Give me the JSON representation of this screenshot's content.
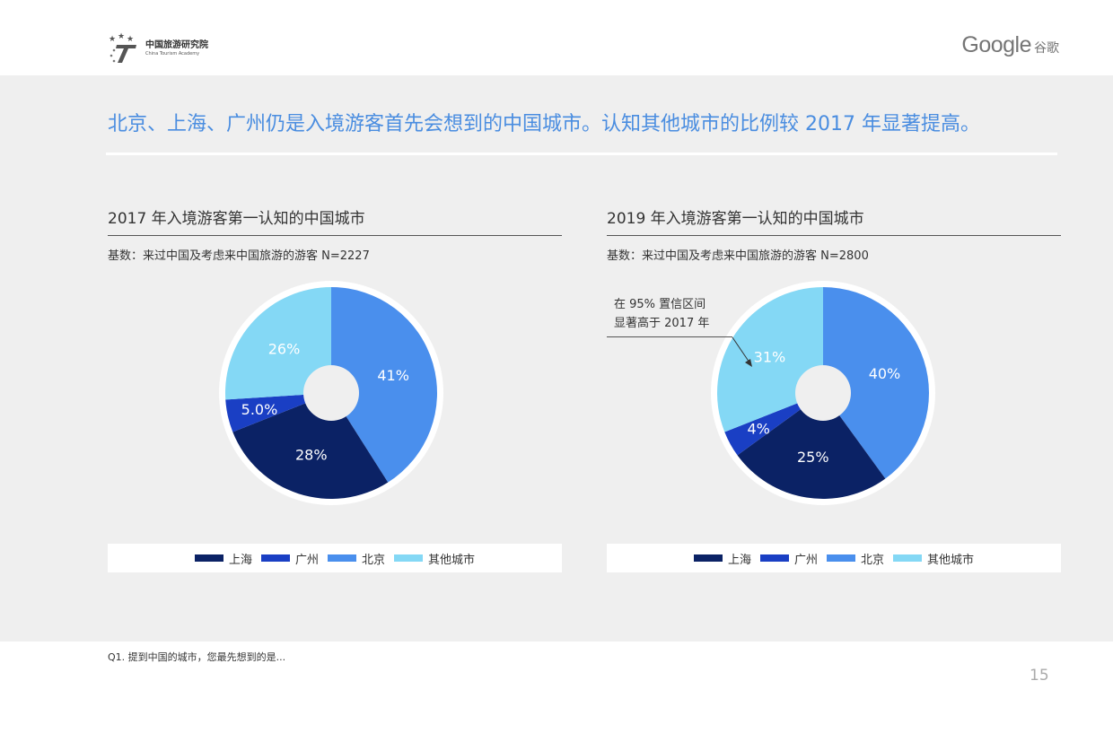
{
  "header": {
    "org_name_cn": "中国旅游研究院",
    "org_name_en": "China Tourism Academy",
    "brand": "Google",
    "brand_cn": "谷歌"
  },
  "headline": "北京、上海、广州仍是入境游客首先会想到的中国城市。认知其他城市的比例较 2017 年显著提高。",
  "legend": [
    "上海",
    "广州",
    "北京",
    "其他城市"
  ],
  "colors": {
    "上海": "#0b2265",
    "广州": "#1a3fc4",
    "北京": "#4a8fed",
    "其他城市": "#84d8f5"
  },
  "panels": [
    {
      "title": "2017 年入境游客第一认知的中国城市",
      "base": "基数：来过中国及考虑来中国旅游的游客 N=2227"
    },
    {
      "title": "2019 年入境游客第一认知的中国城市",
      "base": "基数：来过中国及考虑来中国旅游的游客 N=2800",
      "annotation_line1": "在 95% 置信区间",
      "annotation_line2": "显著高于 2017 年"
    }
  ],
  "chart_data": [
    {
      "type": "pie",
      "title": "2017 年入境游客第一认知的中国城市",
      "categories": [
        "北京",
        "上海",
        "广州",
        "其他城市"
      ],
      "values": [
        41,
        28,
        5.0,
        26
      ],
      "labels": [
        "41%",
        "28%",
        "5.0%",
        "26%"
      ],
      "legend": "bottom"
    },
    {
      "type": "pie",
      "title": "2019 年入境游客第一认知的中国城市",
      "categories": [
        "北京",
        "上海",
        "广州",
        "其他城市"
      ],
      "values": [
        40,
        25,
        4,
        31
      ],
      "labels": [
        "40%",
        "25%",
        "4%",
        "31%"
      ],
      "legend": "bottom"
    }
  ],
  "footer": {
    "question": "Q1. 提到中国的城市，您最先想到的是...",
    "page": "15"
  }
}
